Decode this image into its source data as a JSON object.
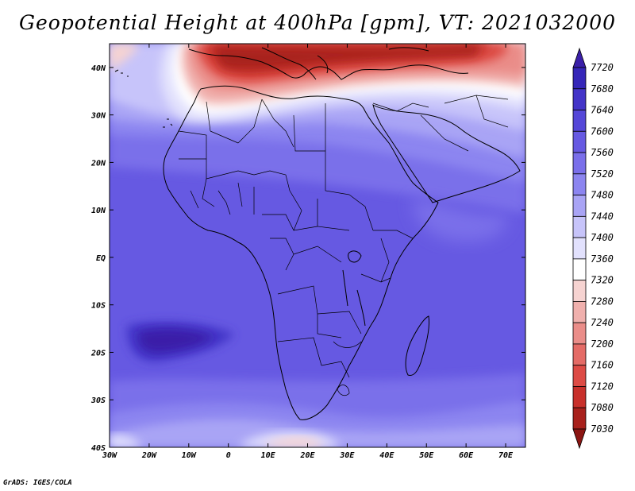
{
  "title": "Geopotential Height at 400hPa [gpm], VT: 2021032000",
  "footer": "GrADS: IGES/COLA",
  "chart_data": {
    "type": "heatmap",
    "variable": "Geopotential Height",
    "level": "400hPa",
    "units": "gpm",
    "valid_time": "2021032000",
    "lon_range": [
      -30,
      75
    ],
    "lat_range": [
      -40,
      45
    ],
    "x_ticks": [
      "30W",
      "20W",
      "10W",
      "0",
      "10E",
      "20E",
      "30E",
      "40E",
      "50E",
      "60E",
      "70E"
    ],
    "y_ticks": [
      "40N",
      "30N",
      "20N",
      "10N",
      "EQ",
      "10S",
      "20S",
      "30S",
      "40S"
    ],
    "colorbar": {
      "labels": [
        "7720",
        "7680",
        "7640",
        "7600",
        "7560",
        "7520",
        "7480",
        "7440",
        "7400",
        "7360",
        "7320",
        "7280",
        "7240",
        "7200",
        "7160",
        "7120",
        "7080",
        "7030"
      ],
      "colors": [
        "#3A1FA8",
        "#3526B8",
        "#4334C8",
        "#5547D8",
        "#6659E2",
        "#7A6FEA",
        "#8C85F0",
        "#A9A4F5",
        "#C7C4FA",
        "#E2E1FD",
        "#FFFFFF",
        "#F6D3D1",
        "#F0B0AD",
        "#EA8D89",
        "#E46B66",
        "#DD4B45",
        "#C8302B",
        "#A8211C",
        "#8B1512"
      ]
    }
  }
}
